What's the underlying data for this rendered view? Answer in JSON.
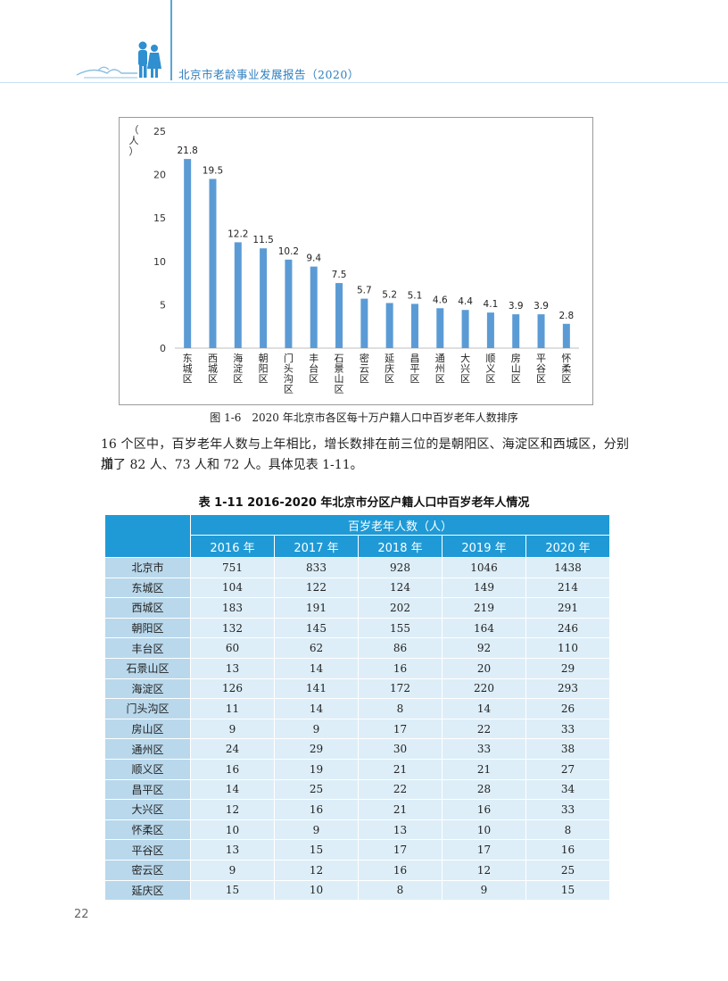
{
  "header": {
    "title": "北京市老龄事业发展报告（2020）"
  },
  "chart_data": {
    "type": "bar",
    "ylabel": "（人）",
    "ylim": [
      0,
      25
    ],
    "yticks": [
      "0",
      "5",
      "10",
      "15",
      "20",
      "25"
    ],
    "grid": false,
    "categories": [
      "东城区",
      "西城区",
      "海淀区",
      "朝阳区",
      "门头沟区",
      "丰台区",
      "石景山区",
      "密云区",
      "延庆区",
      "昌平区",
      "通州区",
      "大兴区",
      "顺义区",
      "房山区",
      "平谷区",
      "怀柔区"
    ],
    "values": [
      21.8,
      19.5,
      12.2,
      11.5,
      10.2,
      9.4,
      7.5,
      5.7,
      5.2,
      5.1,
      4.6,
      4.4,
      4.1,
      3.9,
      3.9,
      2.8
    ],
    "bar_color": "#5b9bd5"
  },
  "figure_caption": "图 1-6　2020 年北京市各区每十万户籍人口中百岁老年人数排序",
  "paragraph": {
    "line1": "16 个区中，百岁老年人数与上年相比，增长数排在前三位的是朝阳区、海淀区和西城区，分别增",
    "line2": "加了 82 人、73 人和 72 人。具体见表 1-11。"
  },
  "table": {
    "caption": "表 1-11  2016-2020 年北京市分区户籍人口中百岁老年人情况",
    "group_header": "百岁老年人数（人）",
    "years": [
      "2016 年",
      "2017 年",
      "2018 年",
      "2019 年",
      "2020 年"
    ],
    "rows": [
      {
        "name": "北京市",
        "vals": [
          "751",
          "833",
          "928",
          "1046",
          "1438"
        ]
      },
      {
        "name": "东城区",
        "vals": [
          "104",
          "122",
          "124",
          "149",
          "214"
        ]
      },
      {
        "name": "西城区",
        "vals": [
          "183",
          "191",
          "202",
          "219",
          "291"
        ]
      },
      {
        "name": "朝阳区",
        "vals": [
          "132",
          "145",
          "155",
          "164",
          "246"
        ]
      },
      {
        "name": "丰台区",
        "vals": [
          "60",
          "62",
          "86",
          "92",
          "110"
        ]
      },
      {
        "name": "石景山区",
        "vals": [
          "13",
          "14",
          "16",
          "20",
          "29"
        ]
      },
      {
        "name": "海淀区",
        "vals": [
          "126",
          "141",
          "172",
          "220",
          "293"
        ]
      },
      {
        "name": "门头沟区",
        "vals": [
          "11",
          "14",
          "8",
          "14",
          "26"
        ]
      },
      {
        "name": "房山区",
        "vals": [
          "9",
          "9",
          "17",
          "22",
          "33"
        ]
      },
      {
        "name": "通州区",
        "vals": [
          "24",
          "29",
          "30",
          "33",
          "38"
        ]
      },
      {
        "name": "顺义区",
        "vals": [
          "16",
          "19",
          "21",
          "21",
          "27"
        ]
      },
      {
        "name": "昌平区",
        "vals": [
          "14",
          "25",
          "22",
          "28",
          "34"
        ]
      },
      {
        "name": "大兴区",
        "vals": [
          "12",
          "16",
          "21",
          "16",
          "33"
        ]
      },
      {
        "name": "怀柔区",
        "vals": [
          "10",
          "9",
          "13",
          "10",
          "8"
        ]
      },
      {
        "name": "平谷区",
        "vals": [
          "13",
          "15",
          "17",
          "17",
          "16"
        ]
      },
      {
        "name": "密云区",
        "vals": [
          "9",
          "12",
          "16",
          "12",
          "25"
        ]
      },
      {
        "name": "延庆区",
        "vals": [
          "15",
          "10",
          "8",
          "9",
          "15"
        ]
      }
    ]
  },
  "page_number": "22"
}
